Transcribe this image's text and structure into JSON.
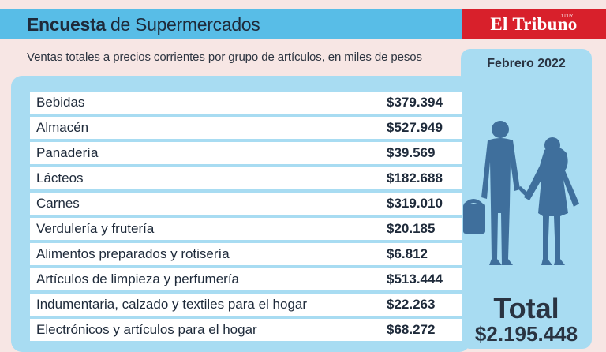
{
  "header": {
    "title_bold": "Encuesta",
    "title_rest": " de Supermercados",
    "brand": "El Tribuno",
    "brand_tag": "JUJUY"
  },
  "subtitle": "Ventas totales a precios corrientes por grupo de artículos, en miles de pesos",
  "period": "Febrero 2022",
  "total": {
    "label": "Total",
    "value": "$2.195.448"
  },
  "colors": {
    "header_bar": "#58bde7",
    "brand_bar": "#d8202b",
    "panel": "#a8dcf2",
    "figures": "#3f6f9c"
  },
  "icons": [
    "couple-with-basket-icon"
  ],
  "chart_data": {
    "type": "table",
    "title": "Encuesta de Supermercados",
    "rows": [
      {
        "label": "Bebidas",
        "display": "$379.394",
        "value": 379394
      },
      {
        "label": "Almacén",
        "display": "$527.949",
        "value": 527949
      },
      {
        "label": "Panadería",
        "display": "$39.569",
        "value": 39569
      },
      {
        "label": "Lácteos",
        "display": "$182.688",
        "value": 182688
      },
      {
        "label": "Carnes",
        "display": "$319.010",
        "value": 319010
      },
      {
        "label": "Verdulería y frutería",
        "display": "$20.185",
        "value": 20185
      },
      {
        "label": "Alimentos preparados y rotisería",
        "display": "$6.812",
        "value": 6812
      },
      {
        "label": "Artículos de limpieza y perfumería",
        "display": "$513.444",
        "value": 513444
      },
      {
        "label": "Indumentaria, calzado y textiles para el hogar",
        "display": "$22.263",
        "value": 22263
      },
      {
        "label": "Electrónicos y artículos para el hogar",
        "display": "$68.272",
        "value": 68272
      }
    ]
  }
}
